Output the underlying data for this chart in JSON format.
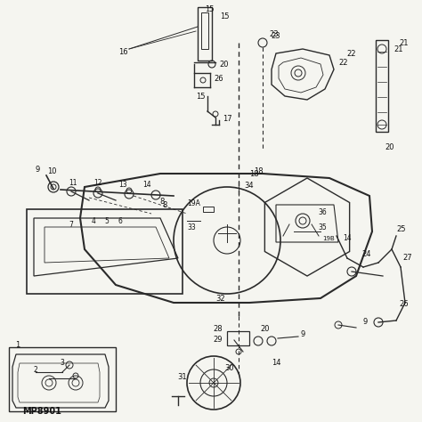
{
  "bg_color": "#f5f5f0",
  "line_color": "#2a2a2a",
  "text_color": "#111111",
  "fig_label": "MP8901",
  "figsize": [
    4.74,
    4.74
  ],
  "dpi": 100
}
